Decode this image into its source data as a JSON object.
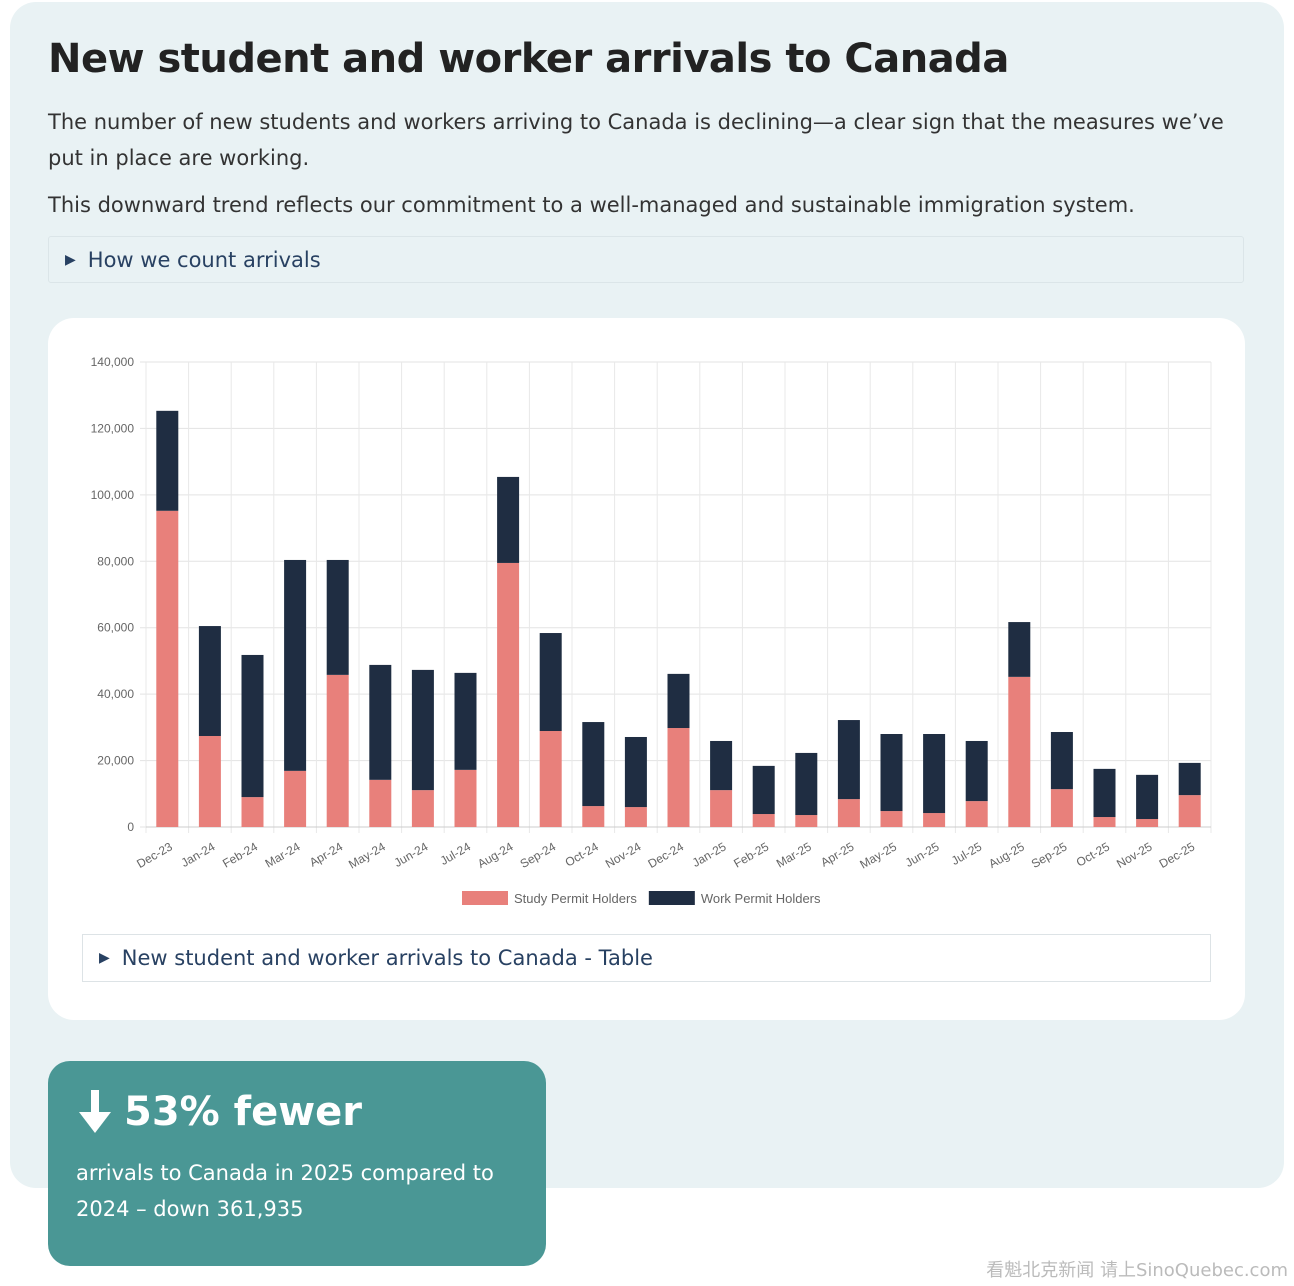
{
  "header": {
    "title": "New student and worker arrivals to Canada",
    "paragraph1": "The number of new students and workers arriving to Canada is declining—a clear sign that the measures we’ve put in place are working.",
    "paragraph2": "This downward trend reflects our commitment to a well-managed and sustainable immigration system.",
    "details_label": "How we count arrivals"
  },
  "table_toggle_label": "New student and worker arrivals to Canada - Table",
  "stat": {
    "headline": "53% fewer",
    "description": "arrivals to Canada in 2025 compared to 2024 – down 361,935",
    "icon": "arrow-down-icon"
  },
  "watermark": "看魁北克新闻 请上SinoQuebec.com",
  "colors": {
    "study": "#e8807b",
    "work": "#1f2d42",
    "teal": "#4a9795",
    "panel": "#e9f2f4"
  },
  "chart_data": {
    "type": "bar",
    "stacked": true,
    "title": "",
    "xlabel": "",
    "ylabel": "",
    "ylim": [
      0,
      140000
    ],
    "yticks": [
      "0",
      "20,000",
      "40,000",
      "60,000",
      "80,000",
      "100,000",
      "120,000",
      "140,000"
    ],
    "grid": true,
    "legend_position": "bottom",
    "categories": [
      "Dec-23",
      "Jan-24",
      "Feb-24",
      "Mar-24",
      "Apr-24",
      "May-24",
      "Jun-24",
      "Jul-24",
      "Aug-24",
      "Sep-24",
      "Oct-24",
      "Nov-24",
      "Dec-24",
      "Jan-25",
      "Feb-25",
      "Mar-25",
      "Apr-25",
      "May-25",
      "Jun-25",
      "Jul-25",
      "Aug-25",
      "Sep-25",
      "Oct-25",
      "Nov-25",
      "Dec-25"
    ],
    "series": [
      {
        "name": "Study Permit Holders",
        "color": "#e8807b",
        "values": [
          95200,
          27400,
          9000,
          16900,
          45800,
          14200,
          11100,
          17200,
          79500,
          28900,
          6300,
          6000,
          29800,
          11100,
          3900,
          3600,
          8400,
          4800,
          4200,
          7800,
          45200,
          11400,
          3000,
          2400,
          9600
        ]
      },
      {
        "name": "Work Permit Holders",
        "color": "#1f2d42",
        "values": [
          30100,
          33100,
          42800,
          63500,
          34600,
          34600,
          36200,
          29200,
          25900,
          29500,
          25300,
          21100,
          16300,
          14800,
          14500,
          18700,
          23800,
          23200,
          23800,
          18100,
          16500,
          17200,
          14500,
          13300,
          9700
        ]
      }
    ]
  }
}
